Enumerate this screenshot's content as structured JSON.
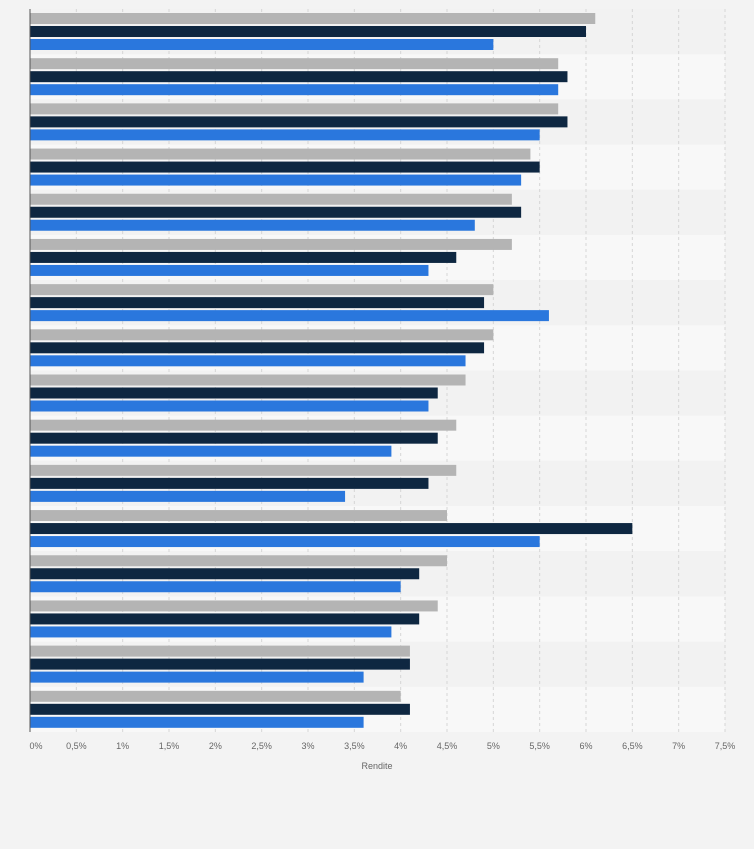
{
  "chart_data": {
    "type": "bar",
    "orientation": "horizontal",
    "xlabel": "Rendite",
    "xlim": [
      0,
      7.5
    ],
    "x_ticks": [
      {
        "value": 0,
        "label": "0%"
      },
      {
        "value": 0.5,
        "label": "0,5%"
      },
      {
        "value": 1,
        "label": "1%"
      },
      {
        "value": 1.5,
        "label": "1,5%"
      },
      {
        "value": 2,
        "label": "2%"
      },
      {
        "value": 2.5,
        "label": "2,5%"
      },
      {
        "value": 3,
        "label": "3%"
      },
      {
        "value": 3.5,
        "label": "3,5%"
      },
      {
        "value": 4,
        "label": "4%"
      },
      {
        "value": 4.5,
        "label": "4,5%"
      },
      {
        "value": 5,
        "label": "5%"
      },
      {
        "value": 5.5,
        "label": "5,5%"
      },
      {
        "value": 6,
        "label": "6%"
      },
      {
        "value": 6.5,
        "label": "6,5%"
      },
      {
        "value": 7,
        "label": "7%"
      },
      {
        "value": 7.5,
        "label": "7,5%"
      }
    ],
    "grid": true,
    "legend": "none",
    "series": [
      {
        "color": "#b4b4b4",
        "values": [
          6.1,
          5.7,
          5.7,
          5.4,
          5.2,
          5.2,
          5.0,
          5.0,
          4.7,
          4.6,
          4.6,
          4.5,
          4.5,
          4.4,
          4.1,
          4.0
        ]
      },
      {
        "color": "#0e2741",
        "values": [
          6.0,
          5.8,
          5.8,
          5.5,
          5.3,
          4.6,
          4.9,
          4.9,
          4.4,
          4.4,
          4.3,
          6.5,
          4.2,
          4.2,
          4.1,
          4.1
        ]
      },
      {
        "color": "#2a77dd",
        "values": [
          5.0,
          5.7,
          5.5,
          5.3,
          4.8,
          4.3,
          5.6,
          4.7,
          4.3,
          3.9,
          3.4,
          5.5,
          4.0,
          3.9,
          3.6,
          3.6
        ]
      }
    ]
  }
}
